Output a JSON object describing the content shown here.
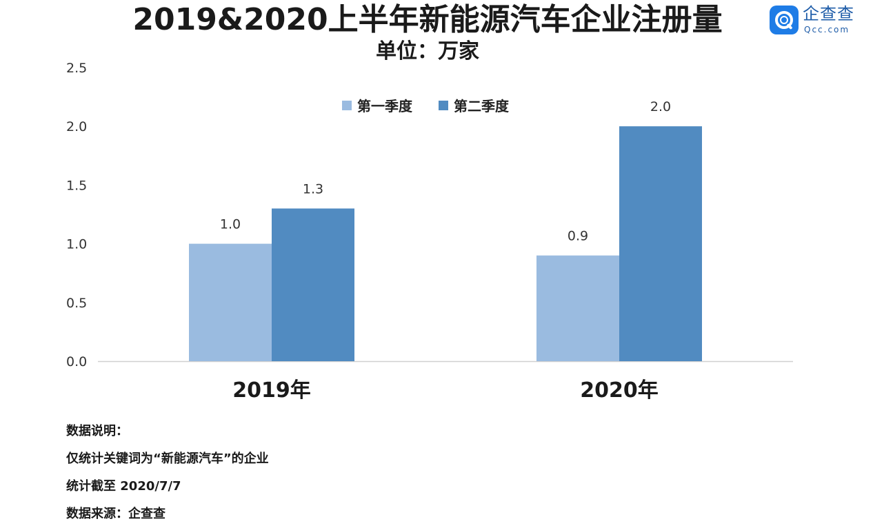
{
  "header": {
    "title": "2019&2020上半年新能源汽车企业注册量",
    "subtitle": "单位：万家"
  },
  "logo": {
    "name": "企查查",
    "sub": "Qcc.com",
    "icon": "qcc-magnifier-icon",
    "color": "#1e7ce6"
  },
  "chart_data": {
    "type": "bar",
    "title": "2019&2020上半年新能源汽车企业注册量",
    "subtitle": "单位：万家",
    "categories": [
      "2019年",
      "2020年"
    ],
    "series": [
      {
        "name": "第一季度",
        "values": [
          1.0,
          0.9
        ],
        "labels": [
          "1.0",
          "0.9"
        ],
        "color": "#9abbe0"
      },
      {
        "name": "第二季度",
        "values": [
          1.3,
          2.0
        ],
        "labels": [
          "1.3",
          "2.0"
        ],
        "color": "#518bc1"
      }
    ],
    "ylim": [
      0,
      2.5
    ],
    "yticks": [
      "0.0",
      "0.5",
      "1.0",
      "1.5",
      "2.0",
      "2.5"
    ],
    "ytick_values": [
      0,
      0.5,
      1.0,
      1.5,
      2.0,
      2.5
    ],
    "grid": false,
    "legend_position": "top-center",
    "xlabel": "",
    "ylabel": ""
  },
  "notes": [
    "数据说明：",
    "仅统计关键词为“新能源汽车”的企业",
    "统计截至 2020/7/7",
    "数据来源：企查查"
  ]
}
